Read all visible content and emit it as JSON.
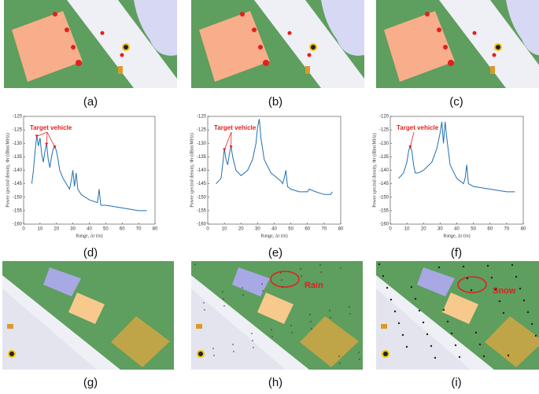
{
  "panel_labels": [
    "(a)",
    "(b)",
    "(c)",
    "(d)",
    "(e)",
    "(f)",
    "(g)",
    "(h)",
    "(i)"
  ],
  "scene_labels": {
    "rain": "Rain",
    "snow": "Snow"
  },
  "chart_data": [
    {
      "type": "line",
      "xlabel": "Range, Δr (m)",
      "ylabel": "Power spectral density, Φr (dBm/MHz)",
      "annotation": "Target vehicle",
      "xlim": [
        0,
        80
      ],
      "ylim": [
        -160,
        -120
      ],
      "xticks": [
        0,
        10,
        20,
        30,
        40,
        50,
        60,
        70,
        80
      ],
      "yticks": [
        -160,
        -155,
        -150,
        -145,
        -140,
        -135,
        -130,
        -125,
        -120
      ],
      "series": [
        {
          "color": "#1f6fb2",
          "x": [
            5,
            6,
            7,
            8,
            9,
            10,
            11,
            12,
            13,
            14,
            15,
            16,
            17,
            18,
            19,
            20,
            21,
            22,
            24,
            26,
            28,
            29,
            30,
            31,
            32,
            33,
            35,
            40,
            45,
            46,
            47,
            48,
            50,
            60,
            70,
            75
          ],
          "values": [
            -145,
            -140,
            -133,
            -127,
            -131,
            -128,
            -134,
            -137,
            -133,
            -130,
            -136,
            -139,
            -135,
            -132,
            -131,
            -133,
            -136,
            -140,
            -143,
            -145,
            -147,
            -144,
            -140,
            -146,
            -141,
            -147,
            -149,
            -151,
            -152,
            -147,
            -153,
            -153,
            -153,
            -154,
            -155,
            -155
          ]
        }
      ]
    },
    {
      "type": "line",
      "xlabel": "Range, Δr (m)",
      "ylabel": "Power spectral density, Φr (dBm/MHz)",
      "annotation": "Target vehicle",
      "xlim": [
        0,
        80
      ],
      "ylim": [
        -160,
        -120
      ],
      "xticks": [
        0,
        10,
        20,
        30,
        40,
        50,
        60,
        70,
        80
      ],
      "yticks": [
        -160,
        -155,
        -150,
        -145,
        -140,
        -135,
        -130,
        -125,
        -120
      ],
      "series": [
        {
          "color": "#1f6fb2",
          "x": [
            5,
            8,
            9,
            10,
            11,
            12,
            13,
            14,
            15,
            17,
            20,
            24,
            27,
            29,
            30,
            31,
            32,
            34,
            38,
            42,
            44,
            45,
            46,
            47,
            48,
            50,
            55,
            60,
            61,
            65,
            70,
            74,
            75
          ],
          "values": [
            -145,
            -143,
            -138,
            -132,
            -136,
            -138,
            -134,
            -131,
            -135,
            -140,
            -142,
            -140,
            -136,
            -130,
            -124,
            -121,
            -128,
            -136,
            -141,
            -143,
            -144,
            -145,
            -143,
            -140,
            -146,
            -147,
            -148,
            -148,
            -147,
            -148,
            -149,
            -149,
            -148
          ]
        }
      ]
    },
    {
      "type": "line",
      "xlabel": "Range, Δr (m)",
      "ylabel": "Power spectral density, Φr (dBm/MHz)",
      "annotation": "Target vehicle",
      "xlim": [
        0,
        80
      ],
      "ylim": [
        -160,
        -120
      ],
      "xticks": [
        0,
        10,
        20,
        30,
        40,
        50,
        60,
        70,
        80
      ],
      "yticks": [
        -160,
        -155,
        -150,
        -145,
        -140,
        -135,
        -130,
        -125,
        -120
      ],
      "series": [
        {
          "color": "#1f6fb2",
          "x": [
            5,
            8,
            10,
            11,
            12,
            13,
            14,
            15,
            17,
            20,
            25,
            28,
            30,
            31,
            32,
            33,
            34,
            36,
            40,
            44,
            45,
            46,
            47,
            50,
            60,
            70,
            75
          ],
          "values": [
            -143,
            -141,
            -137,
            -133,
            -131,
            -133,
            -138,
            -141,
            -141,
            -140,
            -137,
            -132,
            -126,
            -122,
            -130,
            -122,
            -128,
            -138,
            -143,
            -145,
            -143,
            -138,
            -145,
            -146,
            -147,
            -148,
            -148
          ]
        }
      ]
    }
  ]
}
